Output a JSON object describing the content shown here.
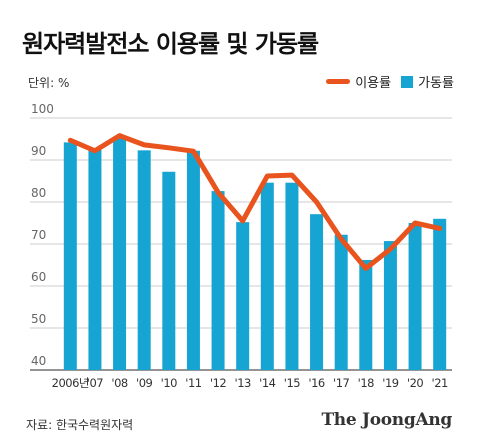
{
  "header": {
    "title": "원자력발전소 이용률 및 가동률",
    "unit": "단위: %"
  },
  "legend": {
    "line_label": "이용률",
    "bar_label": "가동률"
  },
  "footer": {
    "source": "자료: 한국수력원자력",
    "brand": "The JoongAng"
  },
  "colors": {
    "line": "#e8531e",
    "bar": "#16a5d2",
    "grid": "#bdbdbd",
    "axis": "#555555"
  },
  "chart_data": {
    "type": "bar",
    "categories": [
      "2006년",
      "'07",
      "'08",
      "'09",
      "'10",
      "'11",
      "'12",
      "'13",
      "'14",
      "'15",
      "'16",
      "'17",
      "'18",
      "'19",
      "'20",
      "'21"
    ],
    "series": [
      {
        "name": "가동률",
        "type": "bar",
        "values": [
          94.2,
          92.7,
          95.3,
          92.3,
          87.2,
          92.2,
          82.6,
          75.2,
          84.6,
          84.6,
          77.1,
          72.2,
          66.2,
          70.7,
          75.0,
          76.0
        ]
      },
      {
        "name": "이용률",
        "type": "line",
        "values": [
          94.7,
          92.2,
          95.8,
          93.6,
          92.9,
          92.1,
          82.3,
          75.5,
          86.2,
          86.4,
          80.0,
          71.2,
          64.2,
          68.8,
          75.0,
          73.7
        ]
      }
    ],
    "yticks": [
      40,
      50,
      60,
      70,
      80,
      90,
      100
    ],
    "ylim": [
      40,
      100
    ],
    "grid": true,
    "legend_position": "top-right"
  }
}
